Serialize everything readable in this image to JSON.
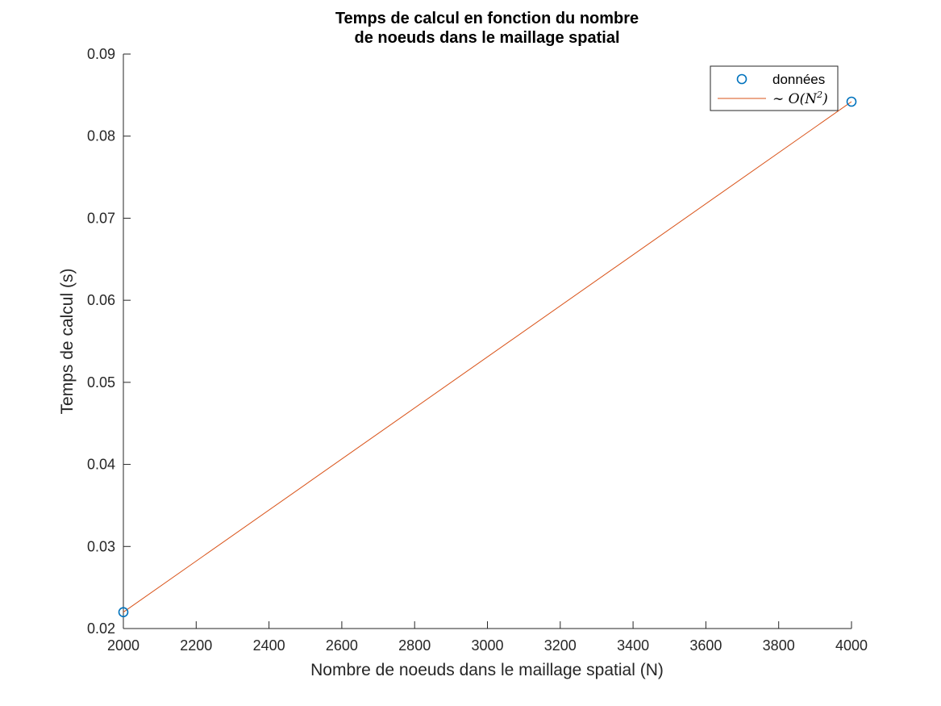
{
  "chart_data": {
    "type": "line",
    "title": [
      "Temps de calcul en fonction du nombre",
      "de noeuds dans le maillage spatial"
    ],
    "xlabel": "Nombre de noeuds dans le maillage spatial (N)",
    "ylabel": "Temps de calcul (s)",
    "xlim": [
      2000,
      4000
    ],
    "ylim": [
      0.02,
      0.09
    ],
    "xticks": [
      2000,
      2200,
      2400,
      2600,
      2800,
      3000,
      3200,
      3400,
      3600,
      3800,
      4000
    ],
    "xtick_labels": [
      "2000",
      "2200",
      "2400",
      "2600",
      "2800",
      "3000",
      "3200",
      "3400",
      "3600",
      "3800",
      "4000"
    ],
    "yticks": [
      0.02,
      0.03,
      0.04,
      0.05,
      0.06,
      0.07,
      0.08,
      0.09
    ],
    "ytick_labels": [
      "0.02",
      "0.03",
      "0.04",
      "0.05",
      "0.06",
      "0.07",
      "0.08",
      "0.09"
    ],
    "grid": false,
    "legend_position": "top-right",
    "series": [
      {
        "name": "données",
        "kind": "scatter",
        "marker": "circle",
        "color": "#0072BD",
        "x": [
          2000,
          4000
        ],
        "y": [
          0.022,
          0.0842
        ]
      },
      {
        "name": "~ O(N²)",
        "kind": "line",
        "color": "#D95319",
        "x": [
          2000,
          4000
        ],
        "y": [
          0.022,
          0.0842
        ]
      }
    ],
    "legend_math": {
      "tilde": "∼",
      "O": "O",
      "open": "(",
      "N": "N",
      "exp": "2",
      "close": ")"
    }
  }
}
